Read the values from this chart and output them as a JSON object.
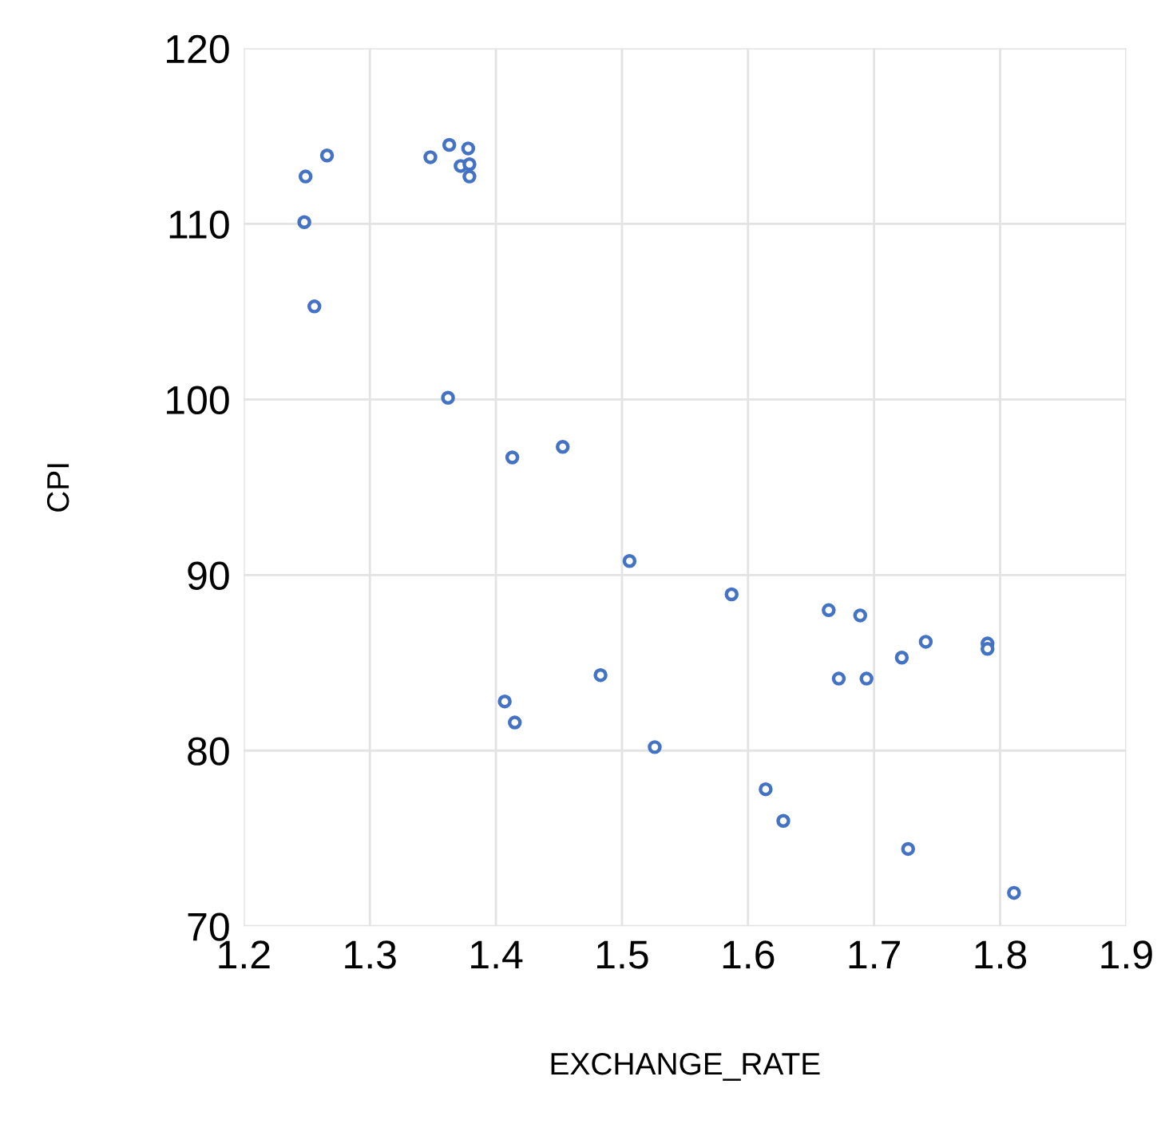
{
  "chart_data": {
    "type": "scatter",
    "xlabel": "EXCHANGE_RATE",
    "ylabel": "CPI",
    "series": [
      {
        "color": "#4472c4",
        "x": [
          1.266,
          1.249,
          1.248,
          1.256,
          1.348,
          1.363,
          1.378,
          1.372,
          1.379,
          1.379,
          1.362,
          1.413,
          1.453,
          1.407,
          1.415,
          1.483,
          1.506,
          1.587,
          1.664,
          1.689,
          1.741,
          1.79,
          1.79,
          1.722,
          1.672,
          1.694,
          1.526,
          1.614,
          1.628,
          1.727,
          1.811
        ],
        "values": [
          113.9,
          112.7,
          110.1,
          105.3,
          113.8,
          114.5,
          114.3,
          113.3,
          113.4,
          112.7,
          100.1,
          96.7,
          97.3,
          82.8,
          81.6,
          84.3,
          90.8,
          88.9,
          88.0,
          87.7,
          86.2,
          86.1,
          85.8,
          85.3,
          84.1,
          84.1,
          80.2,
          77.8,
          76.0,
          74.4,
          71.9
        ]
      }
    ],
    "xlim": [
      1.2,
      1.9
    ],
    "xticks": [
      1.2,
      1.3,
      1.4,
      1.5,
      1.6,
      1.7,
      1.8,
      1.9
    ],
    "ylim": [
      70,
      120
    ],
    "yticks": [
      70,
      80,
      90,
      100,
      110,
      120
    ],
    "grid": true,
    "marker": "circle"
  }
}
